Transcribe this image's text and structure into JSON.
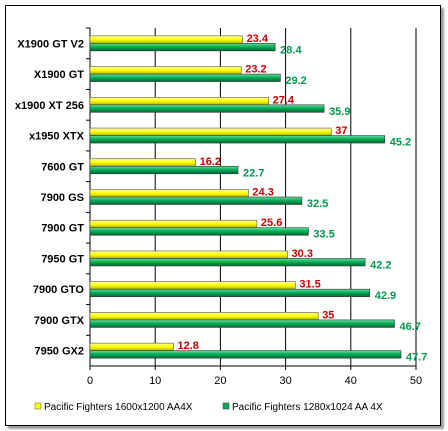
{
  "chart_data": {
    "type": "bar",
    "orientation": "horizontal",
    "categories": [
      "X1900 GT V2",
      "X1900 GT",
      "x1900 XT 256",
      "x1950 XTX",
      "7600 GT",
      "7900 GS",
      "7900 GT",
      "7950 GT",
      "7900 GTO",
      "7900 GTX",
      "7950 GX2"
    ],
    "series": [
      {
        "name": "Pacific Fighters 1600x1200 AA4X",
        "color": "#ffff00",
        "label_color": "#cc0000",
        "values": [
          23.4,
          23.2,
          27.4,
          37,
          16.2,
          24.3,
          25.6,
          30.3,
          31.5,
          35,
          12.8
        ]
      },
      {
        "name": "Pacific Fighters 1280x1024 AA 4X",
        "color": "#00aa55",
        "label_color": "#00994d",
        "values": [
          28.4,
          29.2,
          35.9,
          45.2,
          22.7,
          32.5,
          33.5,
          42.2,
          42.9,
          46.7,
          47.7
        ]
      }
    ],
    "xlim": [
      0,
      50
    ],
    "xticks": [
      0,
      10,
      20,
      30,
      40,
      50
    ],
    "grid": "vertical",
    "legend_position": "bottom"
  }
}
